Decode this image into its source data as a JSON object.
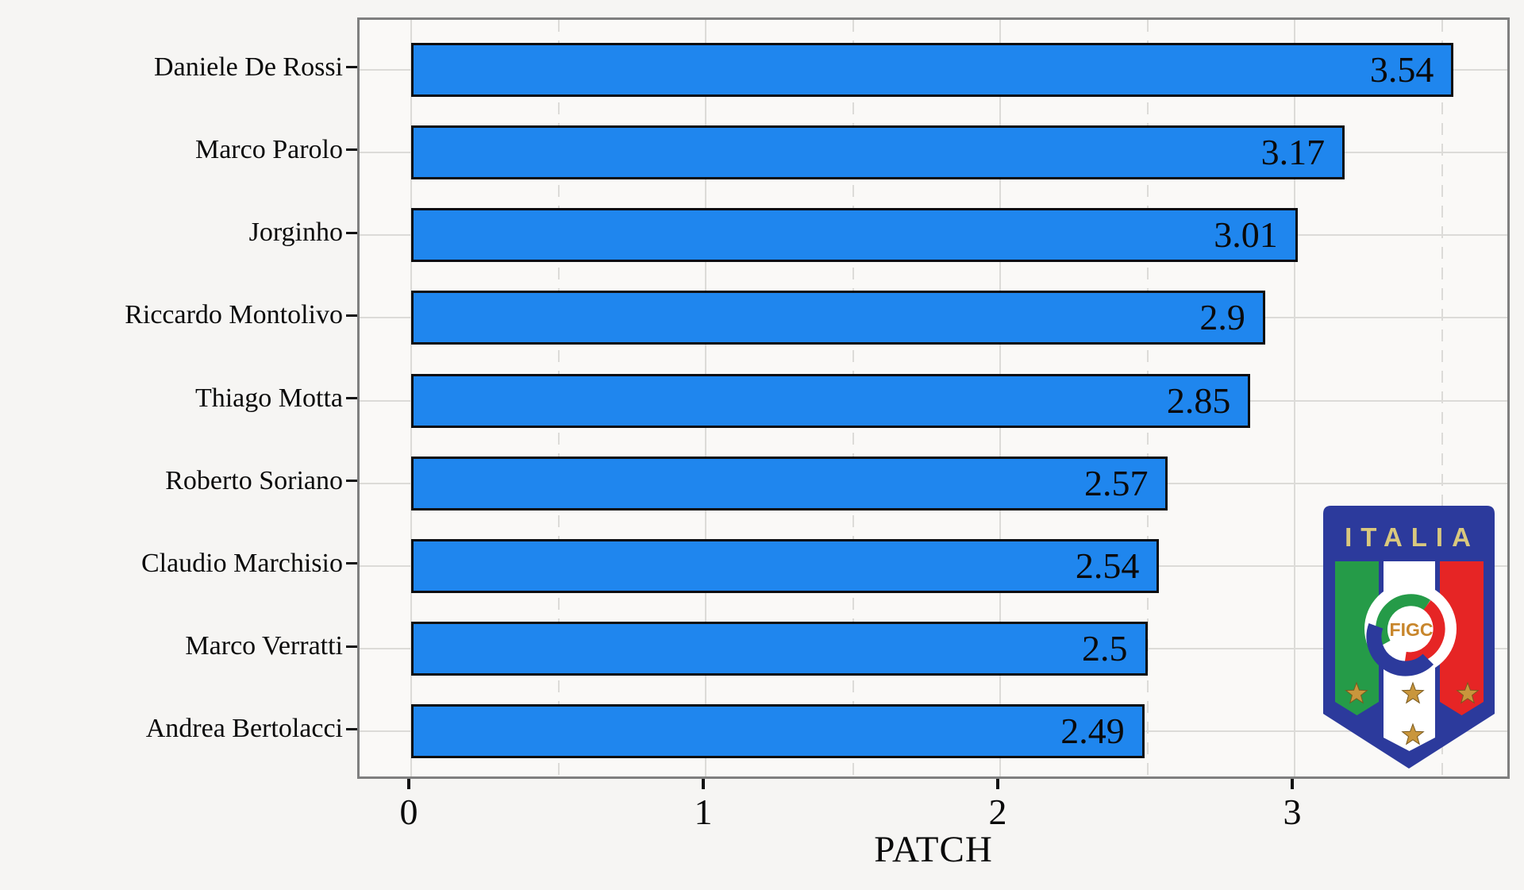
{
  "chart_data": {
    "type": "bar",
    "orientation": "horizontal",
    "title": "",
    "xlabel": "PATCH",
    "ylabel": "",
    "categories": [
      "Daniele De Rossi",
      "Marco Parolo",
      "Jorginho",
      "Riccardo Montolivo",
      "Thiago Motta",
      "Roberto Soriano",
      "Claudio Marchisio",
      "Marco Verratti",
      "Andrea Bertolacci"
    ],
    "values": [
      3.54,
      3.17,
      3.01,
      2.9,
      2.85,
      2.57,
      2.54,
      2.5,
      2.49
    ],
    "value_labels": [
      "3.54",
      "3.17",
      "3.01",
      "2.9",
      "2.85",
      "2.57",
      "2.54",
      "2.5",
      "2.49"
    ],
    "x_tick_values": [
      0,
      1,
      2,
      3
    ],
    "x_tick_labels": [
      "0",
      "1",
      "2",
      "3"
    ],
    "x_minor_tick_values": [
      0.5,
      1.5,
      2.5,
      3.5
    ],
    "xlim": [
      -0.175,
      3.74
    ],
    "grid": {
      "horizontal": "solid",
      "vertical_major": "solid",
      "vertical_minor": "dashed"
    },
    "legend": "none",
    "bar_fill": "#1f86ee",
    "bar_stroke": "#0d0d0d"
  },
  "logo": {
    "name": "FIGC Italia crest",
    "title_text": "ITALIA",
    "center_text": "FIGC",
    "shield_blue": "#2c3a9c",
    "stripe_green": "#259b48",
    "stripe_red": "#e62525",
    "gold": "#d9c87e",
    "star_gold": "#c9963c"
  },
  "page": {
    "bg": "#f6f5f3",
    "panel_bg": "#faf9f7",
    "grid_color": "#dcdbd8",
    "panel_border": "#7f7f7f",
    "text_color": "#0a0a0a"
  }
}
